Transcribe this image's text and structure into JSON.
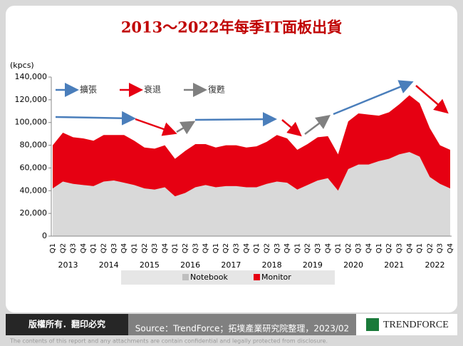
{
  "chart_data": {
    "type": "stacked-area",
    "title": "2013～2022年每季IT面板出貨",
    "y_axis_label": "(kpcs)",
    "categories": [
      "Q1",
      "Q2",
      "Q3",
      "Q4",
      "Q1",
      "Q2",
      "Q3",
      "Q4",
      "Q1",
      "Q2",
      "Q3",
      "Q4",
      "Q1",
      "Q2",
      "Q3",
      "Q4",
      "Q1",
      "Q2",
      "Q3",
      "Q4",
      "Q1",
      "Q2",
      "Q3",
      "Q4",
      "Q1",
      "Q2",
      "Q3",
      "Q4",
      "Q1",
      "Q2",
      "Q3",
      "Q4",
      "Q1",
      "Q2",
      "Q3",
      "Q4",
      "Q1",
      "Q2",
      "Q3",
      "Q4"
    ],
    "year_labels": [
      "2013",
      "2014",
      "2015",
      "2016",
      "2017",
      "2018",
      "2019",
      "2020",
      "2021",
      "2022"
    ],
    "series": [
      {
        "name": "Notebook",
        "color": "#d9d9d9",
        "values": [
          42000,
          48000,
          46000,
          45000,
          44000,
          48000,
          49000,
          47000,
          45000,
          42000,
          41000,
          43000,
          35000,
          38000,
          43000,
          45000,
          43000,
          44000,
          44000,
          43000,
          43000,
          46000,
          48000,
          47000,
          41000,
          45000,
          49000,
          51000,
          40000,
          59000,
          63000,
          63000,
          66000,
          68000,
          72000,
          74000,
          70000,
          52000,
          46000,
          42000
        ]
      },
      {
        "name": "Monitor",
        "color": "#e60012",
        "values": [
          38000,
          43000,
          41000,
          41000,
          40000,
          41000,
          40000,
          42000,
          39000,
          36000,
          36000,
          37000,
          33000,
          37000,
          38000,
          36000,
          35000,
          36000,
          36000,
          35000,
          36000,
          37000,
          41000,
          39000,
          35000,
          36000,
          38000,
          37000,
          32000,
          42000,
          45000,
          44000,
          40000,
          41000,
          44000,
          50000,
          47000,
          43000,
          34000,
          34000
        ]
      }
    ],
    "ylim": [
      0,
      140000
    ],
    "yticks": [
      0,
      {
        "value": 20000,
        "label": "20,000"
      },
      {
        "value": 40000,
        "label": "40,000"
      },
      {
        "value": 60000,
        "label": "60,000"
      },
      {
        "value": 80000,
        "label": "80,000"
      },
      {
        "value": 100000,
        "label": "100,000"
      },
      {
        "value": 120000,
        "label": "120,000"
      },
      {
        "value": 140000,
        "label": "140,000"
      }
    ],
    "annotations": [
      {
        "text": "擴張",
        "color": "#4a7ebb"
      },
      {
        "text": "衰退",
        "color": "#e60012"
      },
      {
        "text": "復甦",
        "color": "#808080"
      }
    ]
  },
  "footer": {
    "copyright": "版權所有．翻印必究",
    "source": "Source：TrendForce；拓墣產業研究院整理，2023/02",
    "logo": "TRENDFORCE",
    "disclaimer": "The contents of this report and any attachments are contain confidential and legally protected from disclosure."
  }
}
